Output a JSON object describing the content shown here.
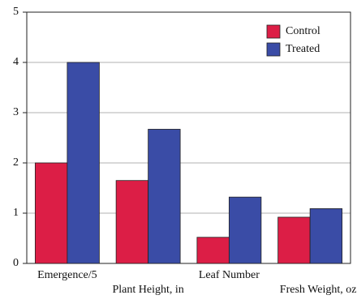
{
  "chart_data": {
    "type": "bar",
    "categories": [
      "Emergence/5",
      "Plant Height, in",
      "Leaf Number",
      "Fresh Weight, oz"
    ],
    "series": [
      {
        "name": "Control",
        "color": "#dc1e46",
        "values": [
          2.0,
          1.65,
          0.52,
          0.92
        ]
      },
      {
        "name": "Treated",
        "color": "#3a4ca6",
        "values": [
          4.0,
          2.67,
          1.32,
          1.09
        ]
      }
    ],
    "ylim": [
      0,
      5
    ],
    "yticks": [
      0,
      1,
      2,
      3,
      4,
      5
    ],
    "grid": true,
    "legend": "upper right"
  }
}
